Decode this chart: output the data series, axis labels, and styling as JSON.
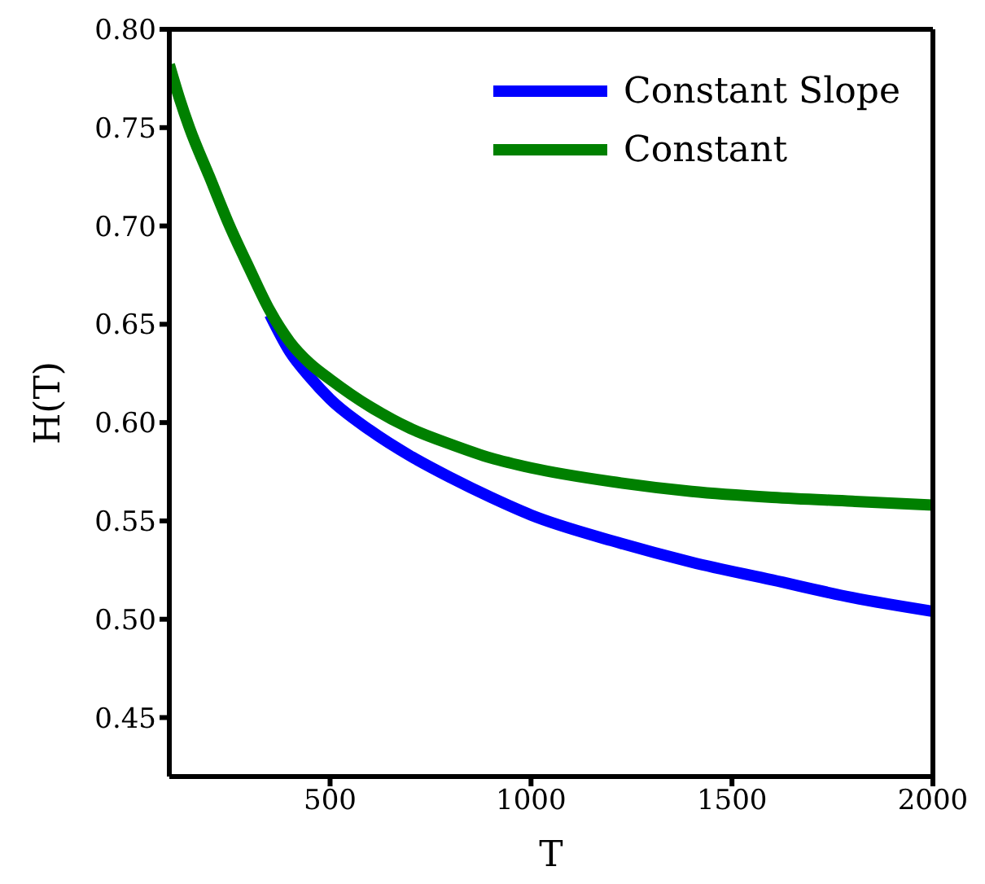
{
  "chart_data": {
    "type": "line",
    "xlabel": "T",
    "ylabel": "H(T)",
    "xlim": [
      100,
      2000
    ],
    "xticks": [
      500,
      1000,
      1500,
      2000
    ],
    "ylim": [
      0.42,
      0.8
    ],
    "yticks": [
      0.45,
      {
        "value": 0.5,
        "label": "0.50"
      },
      0.55,
      {
        "value": 0.6,
        "label": "0.60"
      },
      0.65,
      {
        "value": 0.7,
        "label": "0.70"
      },
      0.75,
      {
        "value": 0.8,
        "label": "0.80"
      }
    ],
    "legend": "top right",
    "marker": "none",
    "line_style": "solid",
    "series": [
      {
        "name": "Constant Slope",
        "color": "#0000ff",
        "x": [
          350,
          400,
          450,
          500,
          600,
          700,
          800,
          900,
          1000,
          1200,
          1400,
          1600,
          1800,
          2000
        ],
        "values": [
          0.655,
          0.636,
          0.623,
          0.612,
          0.596,
          0.583,
          0.572,
          0.562,
          0.553,
          0.54,
          0.529,
          0.52,
          0.511,
          0.504
        ]
      },
      {
        "name": "Constant",
        "color": "#008000",
        "x": [
          100,
          125,
          150,
          200,
          250,
          300,
          350,
          400,
          450,
          500,
          600,
          700,
          800,
          900,
          1000,
          1200,
          1400,
          1600,
          1800,
          2000
        ],
        "values": [
          0.782,
          0.765,
          0.75,
          0.725,
          0.7,
          0.678,
          0.657,
          0.641,
          0.63,
          0.622,
          0.608,
          0.597,
          0.589,
          0.582,
          0.577,
          0.57,
          0.565,
          0.562,
          0.56,
          0.558
        ]
      }
    ]
  }
}
